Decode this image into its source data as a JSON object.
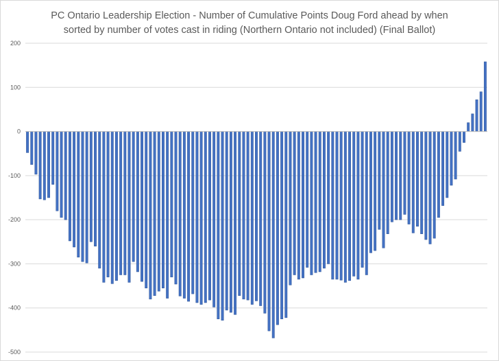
{
  "chart_data": {
    "type": "bar",
    "title_line1": "PC Ontario Leadership Election - Number of Cumulative Points Doug Ford ahead by when",
    "title_line2": "sorted by number of votes cast in riding (Northern Ontario not included) (Final Ballot)",
    "xlabel": "",
    "ylabel": "",
    "ylim": [
      -500,
      200
    ],
    "yticks": [
      "200",
      "100",
      "0",
      "-100",
      "-200",
      "-300",
      "-400",
      "-500"
    ],
    "grid": "horizontal",
    "legend": "none",
    "bar_color": "#4472c4",
    "bar_edge_color": "#2f5597",
    "grid_color": "#d9d9d9",
    "values": [
      -48,
      -75,
      -97,
      -153,
      -155,
      -150,
      -120,
      -180,
      -195,
      -200,
      -248,
      -262,
      -285,
      -295,
      -298,
      -250,
      -260,
      -310,
      -342,
      -330,
      -345,
      -338,
      -325,
      -325,
      -342,
      -295,
      -318,
      -340,
      -355,
      -380,
      -372,
      -362,
      -355,
      -378,
      -330,
      -346,
      -373,
      -378,
      -385,
      -368,
      -388,
      -392,
      -388,
      -382,
      -398,
      -425,
      -428,
      -405,
      -410,
      -415,
      -372,
      -380,
      -382,
      -392,
      -384,
      -395,
      -412,
      -452,
      -468,
      -438,
      -425,
      -422,
      -348,
      -325,
      -335,
      -332,
      -308,
      -325,
      -320,
      -318,
      -310,
      -300,
      -335,
      -335,
      -337,
      -342,
      -338,
      -328,
      -335,
      -308,
      -325,
      -275,
      -270,
      -222,
      -264,
      -232,
      -205,
      -200,
      -200,
      -188,
      -210,
      -230,
      -215,
      -232,
      -245,
      -255,
      -242,
      -195,
      -168,
      -150,
      -122,
      -108,
      -45,
      -25,
      20,
      40,
      72,
      90,
      158
    ]
  }
}
